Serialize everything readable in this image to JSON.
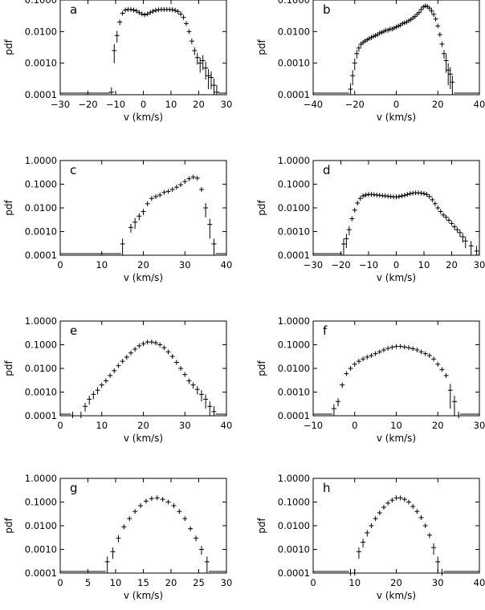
{
  "chart_data": [
    {
      "type": "scatter",
      "panel_label": "a",
      "xlabel": "v (km/s)",
      "ylabel": "pdf",
      "xlim": [
        -30,
        30
      ],
      "ylim": [
        0.0001,
        0.1
      ],
      "yscale": "log",
      "xticks": [
        -30,
        -20,
        -10,
        0,
        10,
        20,
        30
      ],
      "xtick_labels": [
        "−30",
        "−20",
        "−10",
        "0",
        "10",
        "20",
        "30"
      ],
      "yticks": [
        0.0001,
        0.001,
        0.01,
        0.1
      ],
      "ytick_labels": [
        "0.0001",
        "0.0010",
        "0.0100",
        "0.1000"
      ],
      "grid": false,
      "x": [
        -11.5,
        -10.5,
        -9.5,
        -8.5,
        -7.5,
        -6.5,
        -5.5,
        -4.5,
        -3.5,
        -2.5,
        -1.5,
        -0.5,
        0.5,
        1.5,
        2.5,
        3.5,
        4.5,
        5.5,
        6.5,
        7.5,
        8.5,
        9.5,
        10.5,
        11.5,
        12.5,
        13.5,
        14.5,
        15.5,
        16.5,
        17.5,
        18.5,
        19.5,
        20.5,
        21.5,
        22.5,
        23.5,
        24.5,
        25.5,
        26.5
      ],
      "y": [
        0.00012,
        0.0025,
        0.0075,
        0.02,
        0.038,
        0.048,
        0.05,
        0.05,
        0.048,
        0.045,
        0.04,
        0.036,
        0.034,
        0.036,
        0.04,
        0.044,
        0.047,
        0.049,
        0.05,
        0.05,
        0.05,
        0.05,
        0.049,
        0.047,
        0.043,
        0.036,
        0.028,
        0.018,
        0.01,
        0.005,
        0.0025,
        0.0015,
        0.001,
        0.0012,
        0.0007,
        0.0004,
        0.00035,
        0.0002,
        0.00012
      ],
      "err": [
        5e-05,
        0.0015,
        0.003,
        0.004,
        0.004,
        0.003,
        0.003,
        0.003,
        0.003,
        0.003,
        0.003,
        0.003,
        0.003,
        0.003,
        0.003,
        0.003,
        0.003,
        0.003,
        0.003,
        0.003,
        0.003,
        0.003,
        0.003,
        0.003,
        0.003,
        0.003,
        0.003,
        0.002,
        0.0015,
        0.001,
        0.0007,
        0.0006,
        0.0005,
        0.0006,
        0.0004,
        0.00025,
        0.0002,
        0.00012,
        8e-05
      ]
    },
    {
      "type": "scatter",
      "panel_label": "b",
      "xlabel": "v (km/s)",
      "ylabel": "pdf",
      "xlim": [
        -40,
        40
      ],
      "ylim": [
        0.0001,
        0.1
      ],
      "yscale": "log",
      "xticks": [
        -40,
        -20,
        0,
        20,
        40
      ],
      "xtick_labels": [
        "−40",
        "−20",
        "0",
        "20",
        "40"
      ],
      "yticks": [
        0.0001,
        0.001,
        0.01,
        0.1
      ],
      "ytick_labels": [
        "0.0001",
        "0.0010",
        "0.0100",
        "0.1000"
      ],
      "grid": false,
      "x": [
        -22,
        -21,
        -20,
        -19,
        -18,
        -17,
        -16,
        -15,
        -14,
        -13,
        -12,
        -11,
        -10,
        -9,
        -8,
        -7,
        -6,
        -5,
        -4,
        -3,
        -2,
        -1,
        0,
        1,
        2,
        3,
        4,
        5,
        6,
        7,
        8,
        9,
        10,
        11,
        12,
        13,
        14,
        15,
        16,
        17,
        18,
        19,
        20,
        21,
        22,
        23,
        24,
        25,
        26,
        27
      ],
      "y": [
        0.00015,
        0.0004,
        0.001,
        0.002,
        0.003,
        0.004,
        0.0045,
        0.005,
        0.0055,
        0.006,
        0.0065,
        0.007,
        0.0075,
        0.008,
        0.009,
        0.0095,
        0.01,
        0.011,
        0.011,
        0.012,
        0.012,
        0.013,
        0.014,
        0.015,
        0.016,
        0.018,
        0.019,
        0.02,
        0.022,
        0.024,
        0.027,
        0.03,
        0.035,
        0.04,
        0.05,
        0.06,
        0.065,
        0.062,
        0.055,
        0.045,
        0.035,
        0.025,
        0.015,
        0.008,
        0.004,
        0.002,
        0.0012,
        0.0006,
        0.00045,
        0.00025
      ],
      "err": [
        8e-05,
        0.0002,
        0.0004,
        0.0006,
        0.0007,
        0.0008,
        0.0008,
        0.0008,
        0.0008,
        0.0008,
        0.0008,
        0.0008,
        0.0008,
        0.0008,
        0.0008,
        0.0008,
        0.0008,
        0.0008,
        0.0008,
        0.0008,
        0.0008,
        0.0008,
        0.0009,
        0.0009,
        0.001,
        0.001,
        0.001,
        0.001,
        0.0012,
        0.0012,
        0.0015,
        0.0015,
        0.002,
        0.002,
        0.003,
        0.003,
        0.003,
        0.003,
        0.003,
        0.003,
        0.003,
        0.002,
        0.0015,
        0.001,
        0.0008,
        0.0006,
        0.0007,
        0.0004,
        0.0003,
        0.00015
      ]
    },
    {
      "type": "scatter",
      "panel_label": "c",
      "xlabel": "v (km/s)",
      "ylabel": "pdf",
      "xlim": [
        0,
        40
      ],
      "ylim": [
        0.0001,
        1
      ],
      "yscale": "log",
      "xticks": [
        0,
        10,
        20,
        30,
        40
      ],
      "xtick_labels": [
        "0",
        "10",
        "20",
        "30",
        "40"
      ],
      "yticks": [
        0.0001,
        0.001,
        0.01,
        0.1,
        1
      ],
      "ytick_labels": [
        "0.0001",
        "0.0010",
        "0.0100",
        "0.1000",
        "1.0000"
      ],
      "grid": false,
      "x": [
        15,
        17,
        18,
        19,
        20,
        21,
        22,
        23,
        24,
        25,
        26,
        27,
        28,
        29,
        30,
        31,
        32,
        33,
        34,
        35,
        36,
        37
      ],
      "y": [
        0.0003,
        0.0015,
        0.0025,
        0.0045,
        0.007,
        0.015,
        0.025,
        0.03,
        0.035,
        0.045,
        0.05,
        0.06,
        0.075,
        0.095,
        0.13,
        0.17,
        0.2,
        0.18,
        0.06,
        0.01,
        0.002,
        0.0003
      ],
      "err": [
        0.0002,
        0.0006,
        0.0012,
        0.0015,
        0.002,
        0.003,
        0.004,
        0.004,
        0.004,
        0.005,
        0.005,
        0.006,
        0.007,
        0.008,
        0.01,
        0.012,
        0.015,
        0.015,
        0.01,
        0.006,
        0.0015,
        0.0002
      ]
    },
    {
      "type": "scatter",
      "panel_label": "d",
      "xlabel": "v (km/s)",
      "ylabel": "pdf",
      "xlim": [
        -30,
        30
      ],
      "ylim": [
        0.0001,
        1
      ],
      "yscale": "log",
      "xticks": [
        -30,
        -20,
        -10,
        0,
        10,
        20,
        30
      ],
      "xtick_labels": [
        "−30",
        "−20",
        "−10",
        "0",
        "10",
        "20",
        "30"
      ],
      "yticks": [
        0.0001,
        0.001,
        0.01,
        0.1,
        1
      ],
      "ytick_labels": [
        "0.0001",
        "0.0010",
        "0.0100",
        "0.1000",
        "1.0000"
      ],
      "grid": false,
      "x": [
        -19,
        -18,
        -17,
        -16,
        -15,
        -14,
        -13,
        -12,
        -11,
        -10,
        -9,
        -8,
        -7,
        -6,
        -5,
        -4,
        -3,
        -2,
        -1,
        0,
        1,
        2,
        3,
        4,
        5,
        6,
        7,
        8,
        9,
        10,
        11,
        12,
        13,
        14,
        15,
        16,
        17,
        18,
        19,
        20,
        21,
        22,
        23,
        24,
        25,
        27,
        29
      ],
      "y": [
        0.0003,
        0.0005,
        0.0012,
        0.0035,
        0.008,
        0.016,
        0.025,
        0.032,
        0.035,
        0.037,
        0.037,
        0.036,
        0.035,
        0.034,
        0.033,
        0.032,
        0.031,
        0.03,
        0.029,
        0.029,
        0.03,
        0.032,
        0.034,
        0.037,
        0.04,
        0.042,
        0.043,
        0.043,
        0.042,
        0.04,
        0.037,
        0.03,
        0.022,
        0.015,
        0.01,
        0.007,
        0.005,
        0.004,
        0.003,
        0.0022,
        0.0016,
        0.0012,
        0.0009,
        0.0006,
        0.0004,
        0.00025,
        0.00015
      ],
      "err": [
        0.0002,
        0.0003,
        0.0005,
        0.0008,
        0.001,
        0.0015,
        0.002,
        0.002,
        0.002,
        0.002,
        0.002,
        0.002,
        0.002,
        0.002,
        0.002,
        0.002,
        0.002,
        0.002,
        0.002,
        0.002,
        0.002,
        0.002,
        0.002,
        0.002,
        0.002,
        0.002,
        0.002,
        0.002,
        0.002,
        0.002,
        0.002,
        0.002,
        0.0015,
        0.001,
        0.0008,
        0.0007,
        0.0006,
        0.0005,
        0.0005,
        0.0004,
        0.0004,
        0.0003,
        0.0003,
        0.00025,
        0.0002,
        0.00015,
        0.0001
      ]
    },
    {
      "type": "scatter",
      "panel_label": "e",
      "xlabel": "v (km/s)",
      "ylabel": "pdf",
      "xlim": [
        0,
        40
      ],
      "ylim": [
        0.0001,
        1
      ],
      "yscale": "log",
      "xticks": [
        0,
        10,
        20,
        30,
        40
      ],
      "xtick_labels": [
        "0",
        "10",
        "20",
        "30",
        "40"
      ],
      "yticks": [
        0.0001,
        0.001,
        0.01,
        0.1,
        1
      ],
      "ytick_labels": [
        "0.0001",
        "0.0010",
        "0.0100",
        "0.1000",
        "1.0000"
      ],
      "grid": false,
      "x": [
        3,
        5,
        6,
        7,
        8,
        9,
        10,
        11,
        12,
        13,
        14,
        15,
        16,
        17,
        18,
        19,
        20,
        21,
        22,
        23,
        24,
        25,
        26,
        27,
        28,
        29,
        30,
        31,
        32,
        33,
        34,
        35,
        36,
        37
      ],
      "y": [
        0.0001,
        0.0001,
        0.00025,
        0.0005,
        0.0008,
        0.0012,
        0.002,
        0.003,
        0.005,
        0.008,
        0.013,
        0.02,
        0.03,
        0.045,
        0.065,
        0.09,
        0.11,
        0.13,
        0.13,
        0.12,
        0.1,
        0.075,
        0.05,
        0.032,
        0.018,
        0.01,
        0.0055,
        0.003,
        0.002,
        0.0013,
        0.0008,
        0.0005,
        0.00025,
        0.00015
      ],
      "err": [
        5e-05,
        5e-05,
        0.0001,
        0.0002,
        0.0003,
        0.0004,
        0.0005,
        0.0006,
        0.0008,
        0.001,
        0.0012,
        0.0015,
        0.002,
        0.003,
        0.004,
        0.005,
        0.006,
        0.007,
        0.007,
        0.007,
        0.006,
        0.005,
        0.004,
        0.003,
        0.002,
        0.0015,
        0.001,
        0.0008,
        0.0006,
        0.0005,
        0.0004,
        0.0003,
        0.00015,
        0.0001
      ]
    },
    {
      "type": "scatter",
      "panel_label": "f",
      "xlabel": "v (km/s)",
      "ylabel": "pdf",
      "xlim": [
        -10,
        30
      ],
      "ylim": [
        0.0001,
        1
      ],
      "yscale": "log",
      "xticks": [
        -10,
        0,
        10,
        20,
        30
      ],
      "xtick_labels": [
        "−10",
        "0",
        "10",
        "20",
        "30"
      ],
      "yticks": [
        0.0001,
        0.001,
        0.01,
        0.1,
        1
      ],
      "ytick_labels": [
        "0.0001",
        "0.0010",
        "0.0100",
        "0.1000",
        "1.0000"
      ],
      "grid": false,
      "x": [
        -5,
        -4,
        -3,
        -2,
        -1,
        0,
        1,
        2,
        3,
        4,
        5,
        6,
        7,
        8,
        9,
        10,
        11,
        12,
        13,
        14,
        15,
        16,
        17,
        18,
        19,
        20,
        21,
        22,
        23,
        24,
        25
      ],
      "y": [
        0.0002,
        0.0004,
        0.002,
        0.006,
        0.01,
        0.015,
        0.02,
        0.025,
        0.03,
        0.035,
        0.042,
        0.05,
        0.06,
        0.07,
        0.078,
        0.085,
        0.085,
        0.08,
        0.075,
        0.068,
        0.06,
        0.05,
        0.042,
        0.035,
        0.025,
        0.015,
        0.009,
        0.005,
        0.0012,
        0.0004,
        0.0001
      ],
      "err": [
        0.0001,
        0.00015,
        0.0005,
        0.001,
        0.0012,
        0.0015,
        0.0015,
        0.002,
        0.002,
        0.002,
        0.0025,
        0.003,
        0.003,
        0.003,
        0.003,
        0.003,
        0.003,
        0.003,
        0.003,
        0.003,
        0.003,
        0.003,
        0.003,
        0.003,
        0.002,
        0.0015,
        0.0012,
        0.001,
        0.001,
        0.0003,
        5e-05
      ]
    },
    {
      "type": "scatter",
      "panel_label": "g",
      "xlabel": "v (km/s)",
      "ylabel": "pdf",
      "xlim": [
        0,
        30
      ],
      "ylim": [
        0.0001,
        1
      ],
      "yscale": "log",
      "xticks": [
        0,
        5,
        10,
        15,
        20,
        25,
        30
      ],
      "xtick_labels": [
        "0",
        "5",
        "10",
        "15",
        "20",
        "25",
        "30"
      ],
      "yticks": [
        0.0001,
        0.001,
        0.01,
        0.1,
        1
      ],
      "ytick_labels": [
        "0.0001",
        "0.0010",
        "0.0100",
        "0.1000",
        "1.0000"
      ],
      "grid": false,
      "x": [
        8.5,
        9.5,
        10.5,
        11.5,
        12.5,
        13.5,
        14.5,
        15.5,
        16.5,
        17.5,
        18.5,
        19.5,
        20.5,
        21.5,
        22.5,
        23.5,
        24.5,
        25.5,
        26.5
      ],
      "y": [
        0.0003,
        0.0008,
        0.003,
        0.009,
        0.02,
        0.04,
        0.07,
        0.11,
        0.14,
        0.15,
        0.13,
        0.1,
        0.07,
        0.04,
        0.02,
        0.0075,
        0.003,
        0.001,
        0.0003
      ],
      "err": [
        0.0002,
        0.0004,
        0.001,
        0.002,
        0.003,
        0.005,
        0.008,
        0.012,
        0.015,
        0.016,
        0.014,
        0.012,
        0.008,
        0.005,
        0.003,
        0.0015,
        0.0008,
        0.0004,
        0.0002
      ]
    },
    {
      "type": "scatter",
      "panel_label": "h",
      "xlabel": "v (km/s)",
      "ylabel": "pdf",
      "xlim": [
        0,
        40
      ],
      "ylim": [
        0.0001,
        1
      ],
      "yscale": "log",
      "xticks": [
        0,
        10,
        20,
        30,
        40
      ],
      "xtick_labels": [
        "0",
        "10",
        "20",
        "30",
        "40"
      ],
      "yticks": [
        0.0001,
        0.001,
        0.01,
        0.1,
        1
      ],
      "ytick_labels": [
        "0.0001",
        "0.0010",
        "0.0100",
        "0.1000",
        "1.0000"
      ],
      "grid": false,
      "x": [
        9,
        10,
        11,
        12,
        13,
        14,
        15,
        16,
        17,
        18,
        19,
        20,
        21,
        22,
        23,
        24,
        25,
        26,
        27,
        28,
        29,
        30,
        31
      ],
      "y": [
        0.0001,
        0.0001,
        0.0008,
        0.002,
        0.005,
        0.01,
        0.02,
        0.035,
        0.06,
        0.09,
        0.12,
        0.15,
        0.15,
        0.13,
        0.1,
        0.065,
        0.04,
        0.022,
        0.01,
        0.004,
        0.0012,
        0.0003,
        0.0001
      ],
      "err": [
        5e-05,
        5e-05,
        0.0004,
        0.0008,
        0.0015,
        0.002,
        0.003,
        0.004,
        0.005,
        0.007,
        0.008,
        0.01,
        0.01,
        0.009,
        0.007,
        0.005,
        0.004,
        0.003,
        0.002,
        0.001,
        0.0006,
        0.0002,
        5e-05
      ]
    }
  ]
}
